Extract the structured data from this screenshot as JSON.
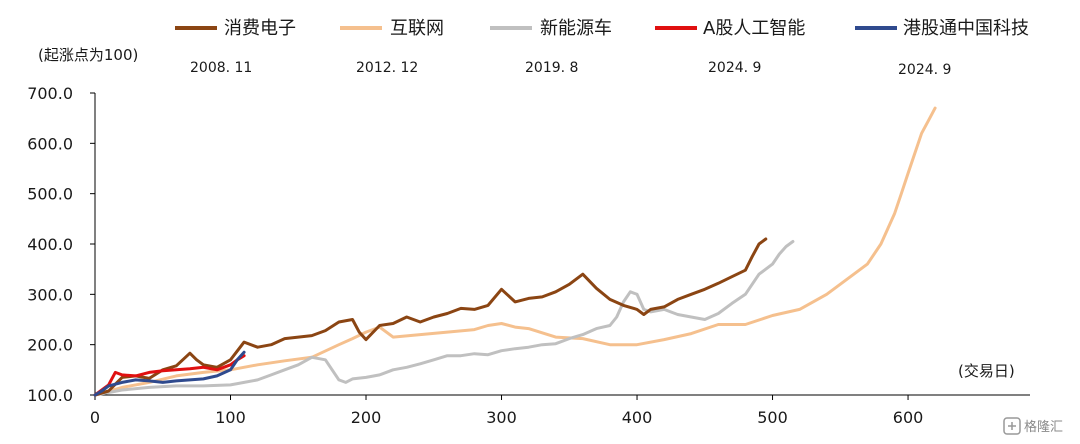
{
  "chart_data": {
    "type": "line",
    "ylabel": "(起涨点为100)",
    "xlabel": "(交易日)",
    "xlim": [
      0,
      690
    ],
    "ylim": [
      100,
      700
    ],
    "x_ticks": [
      "0",
      "100",
      "200",
      "300",
      "400",
      "500",
      "600"
    ],
    "y_ticks": [
      "100.0",
      "200.0",
      "300.0",
      "400.0",
      "500.0",
      "600.0",
      "700.0"
    ],
    "grid": false,
    "legend_position": "top",
    "series": [
      {
        "name": "消费电子",
        "start_label": "2008. 11",
        "color": "#8B4513",
        "points": [
          [
            0,
            100
          ],
          [
            10,
            108
          ],
          [
            20,
            135
          ],
          [
            30,
            138
          ],
          [
            40,
            133
          ],
          [
            50,
            150
          ],
          [
            60,
            158
          ],
          [
            70,
            183
          ],
          [
            75,
            170
          ],
          [
            80,
            160
          ],
          [
            90,
            155
          ],
          [
            100,
            170
          ],
          [
            110,
            205
          ],
          [
            120,
            195
          ],
          [
            130,
            200
          ],
          [
            140,
            212
          ],
          [
            150,
            215
          ],
          [
            160,
            218
          ],
          [
            170,
            228
          ],
          [
            180,
            245
          ],
          [
            190,
            250
          ],
          [
            195,
            225
          ],
          [
            200,
            210
          ],
          [
            210,
            238
          ],
          [
            220,
            242
          ],
          [
            230,
            255
          ],
          [
            240,
            245
          ],
          [
            250,
            255
          ],
          [
            260,
            262
          ],
          [
            270,
            272
          ],
          [
            280,
            270
          ],
          [
            290,
            278
          ],
          [
            300,
            310
          ],
          [
            310,
            285
          ],
          [
            320,
            292
          ],
          [
            330,
            295
          ],
          [
            340,
            305
          ],
          [
            350,
            320
          ],
          [
            360,
            340
          ],
          [
            370,
            312
          ],
          [
            380,
            290
          ],
          [
            390,
            278
          ],
          [
            400,
            270
          ],
          [
            405,
            260
          ],
          [
            410,
            270
          ],
          [
            420,
            275
          ],
          [
            430,
            290
          ],
          [
            440,
            300
          ],
          [
            450,
            310
          ],
          [
            460,
            322
          ],
          [
            470,
            335
          ],
          [
            480,
            348
          ],
          [
            485,
            375
          ],
          [
            490,
            400
          ],
          [
            495,
            410
          ]
        ]
      },
      {
        "name": "互联网",
        "start_label": "2012. 12",
        "color": "#F5C08E",
        "points": [
          [
            0,
            100
          ],
          [
            20,
            115
          ],
          [
            40,
            125
          ],
          [
            60,
            138
          ],
          [
            80,
            145
          ],
          [
            100,
            150
          ],
          [
            120,
            160
          ],
          [
            140,
            168
          ],
          [
            160,
            175
          ],
          [
            180,
            200
          ],
          [
            190,
            212
          ],
          [
            200,
            225
          ],
          [
            210,
            235
          ],
          [
            220,
            215
          ],
          [
            240,
            220
          ],
          [
            260,
            225
          ],
          [
            280,
            230
          ],
          [
            290,
            238
          ],
          [
            300,
            242
          ],
          [
            310,
            235
          ],
          [
            320,
            232
          ],
          [
            340,
            215
          ],
          [
            360,
            212
          ],
          [
            380,
            200
          ],
          [
            400,
            200
          ],
          [
            420,
            210
          ],
          [
            440,
            222
          ],
          [
            460,
            240
          ],
          [
            480,
            240
          ],
          [
            500,
            258
          ],
          [
            520,
            270
          ],
          [
            540,
            300
          ],
          [
            560,
            340
          ],
          [
            570,
            360
          ],
          [
            580,
            400
          ],
          [
            590,
            460
          ],
          [
            595,
            500
          ],
          [
            600,
            540
          ],
          [
            605,
            580
          ],
          [
            610,
            620
          ],
          [
            615,
            645
          ],
          [
            620,
            670
          ]
        ]
      },
      {
        "name": "新能源车",
        "start_label": "2019. 8",
        "color": "#C0C0C0",
        "points": [
          [
            0,
            100
          ],
          [
            20,
            110
          ],
          [
            40,
            115
          ],
          [
            60,
            118
          ],
          [
            80,
            118
          ],
          [
            100,
            120
          ],
          [
            110,
            125
          ],
          [
            120,
            130
          ],
          [
            130,
            140
          ],
          [
            140,
            150
          ],
          [
            150,
            160
          ],
          [
            160,
            175
          ],
          [
            170,
            170
          ],
          [
            180,
            130
          ],
          [
            185,
            125
          ],
          [
            190,
            132
          ],
          [
            200,
            135
          ],
          [
            210,
            140
          ],
          [
            220,
            150
          ],
          [
            230,
            155
          ],
          [
            240,
            162
          ],
          [
            250,
            170
          ],
          [
            260,
            178
          ],
          [
            270,
            178
          ],
          [
            280,
            182
          ],
          [
            290,
            180
          ],
          [
            300,
            188
          ],
          [
            310,
            192
          ],
          [
            320,
            195
          ],
          [
            330,
            200
          ],
          [
            340,
            202
          ],
          [
            350,
            212
          ],
          [
            360,
            220
          ],
          [
            370,
            232
          ],
          [
            380,
            238
          ],
          [
            385,
            255
          ],
          [
            390,
            285
          ],
          [
            395,
            305
          ],
          [
            400,
            300
          ],
          [
            405,
            270
          ],
          [
            410,
            265
          ],
          [
            420,
            270
          ],
          [
            430,
            260
          ],
          [
            440,
            255
          ],
          [
            450,
            250
          ],
          [
            460,
            262
          ],
          [
            470,
            282
          ],
          [
            480,
            300
          ],
          [
            490,
            340
          ],
          [
            500,
            360
          ],
          [
            505,
            380
          ],
          [
            510,
            395
          ],
          [
            515,
            405
          ]
        ]
      },
      {
        "name": "A股人工智能",
        "start_label": "2024. 9",
        "color": "#E01010",
        "points": [
          [
            0,
            100
          ],
          [
            5,
            110
          ],
          [
            10,
            120
          ],
          [
            15,
            145
          ],
          [
            20,
            140
          ],
          [
            30,
            138
          ],
          [
            40,
            145
          ],
          [
            50,
            148
          ],
          [
            60,
            150
          ],
          [
            70,
            152
          ],
          [
            80,
            155
          ],
          [
            90,
            150
          ],
          [
            100,
            160
          ],
          [
            105,
            170
          ],
          [
            110,
            178
          ]
        ]
      },
      {
        "name": "港股通中国科技",
        "start_label": "2024. 9",
        "color": "#2F4A8E",
        "points": [
          [
            0,
            100
          ],
          [
            5,
            108
          ],
          [
            10,
            118
          ],
          [
            20,
            125
          ],
          [
            30,
            130
          ],
          [
            40,
            128
          ],
          [
            50,
            125
          ],
          [
            60,
            128
          ],
          [
            70,
            130
          ],
          [
            80,
            132
          ],
          [
            90,
            138
          ],
          [
            100,
            150
          ],
          [
            105,
            170
          ],
          [
            110,
            185
          ]
        ]
      }
    ]
  },
  "watermark": {
    "text": "格隆汇"
  }
}
